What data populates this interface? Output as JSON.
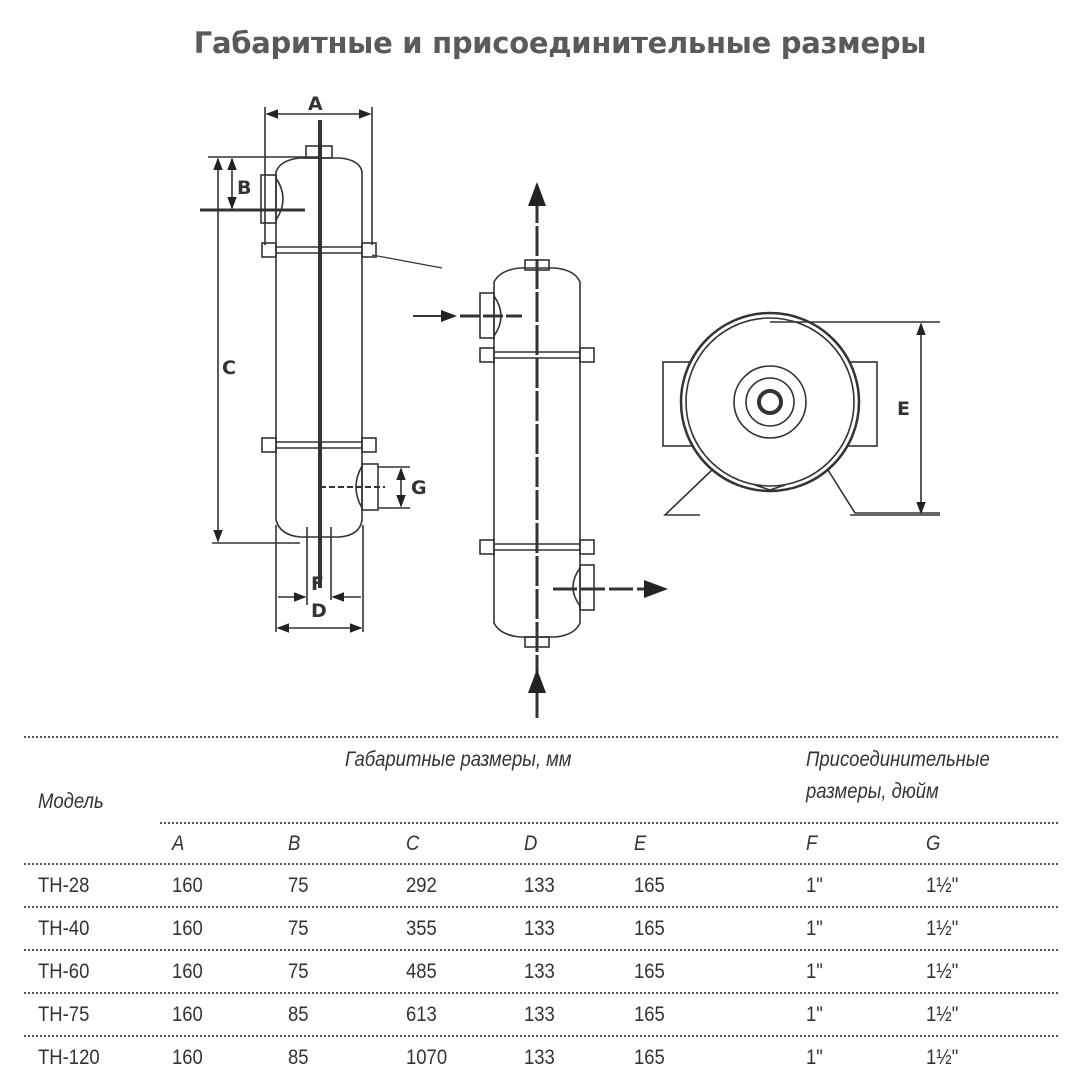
{
  "title": "Габаритные и присоединительные размеры",
  "drawing": {
    "labels": {
      "A": "A",
      "B": "B",
      "C": "C",
      "D": "D",
      "E": "E",
      "F": "F",
      "G": "G"
    }
  },
  "table": {
    "model_header": "Модель",
    "group_dimensions": "Габаритные размеры, мм",
    "group_connections_line1": "Присоединительные",
    "group_connections_line2": "размеры, дюйм",
    "columns": [
      "A",
      "B",
      "C",
      "D",
      "E",
      "F",
      "G"
    ],
    "rows": [
      [
        "ТН-28",
        "160",
        "75",
        "292",
        "133",
        "165",
        "1\"",
        "1½\""
      ],
      [
        "ТН-40",
        "160",
        "75",
        "355",
        "133",
        "165",
        "1\"",
        "1½\""
      ],
      [
        "ТН-60",
        "160",
        "75",
        "485",
        "133",
        "165",
        "1\"",
        "1½\""
      ],
      [
        "ТН-75",
        "160",
        "85",
        "613",
        "133",
        "165",
        "1\"",
        "1½\""
      ],
      [
        "ТН-120",
        "160",
        "85",
        "1070",
        "133",
        "165",
        "1\"",
        "1½\""
      ]
    ]
  }
}
